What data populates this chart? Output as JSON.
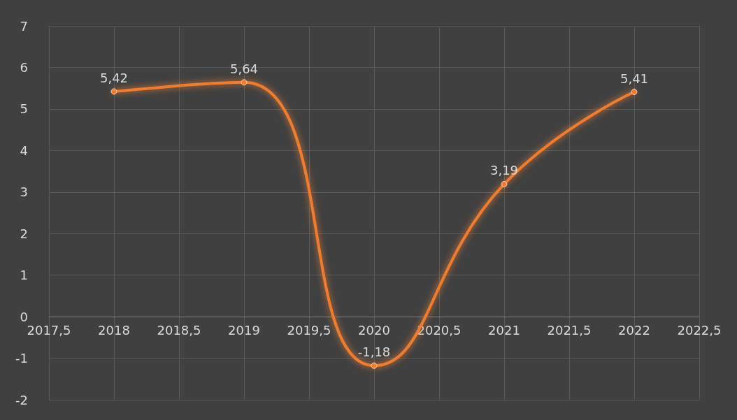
{
  "chart_data": {
    "type": "line",
    "x": [
      2018,
      2019,
      2020,
      2021,
      2022
    ],
    "series": [
      {
        "color": "#ed7d31",
        "values": [
          5.42,
          5.64,
          -1.18,
          3.19,
          5.41
        ],
        "value_labels": [
          "5,42",
          "5,64",
          "-1,18",
          "3,19",
          "5,41"
        ]
      }
    ],
    "xlim": [
      2017.5,
      2022.5
    ],
    "xticks": [
      {
        "value": 2017.5,
        "label": "2017,5"
      },
      2018,
      {
        "value": 2018.5,
        "label": "2018,5"
      },
      2019,
      {
        "value": 2019.5,
        "label": "2019,5"
      },
      2020,
      {
        "value": 2020.5,
        "label": "2020,5"
      },
      2021,
      {
        "value": 2021.5,
        "label": "2021,5"
      },
      2022,
      {
        "value": 2022.5,
        "label": "2022,5"
      }
    ],
    "ylim": [
      -2,
      7
    ],
    "yticks": [
      -2,
      -1,
      0,
      1,
      2,
      3,
      4,
      5,
      6,
      7
    ],
    "grid": true,
    "marker": "circle",
    "line_style": "solid"
  }
}
